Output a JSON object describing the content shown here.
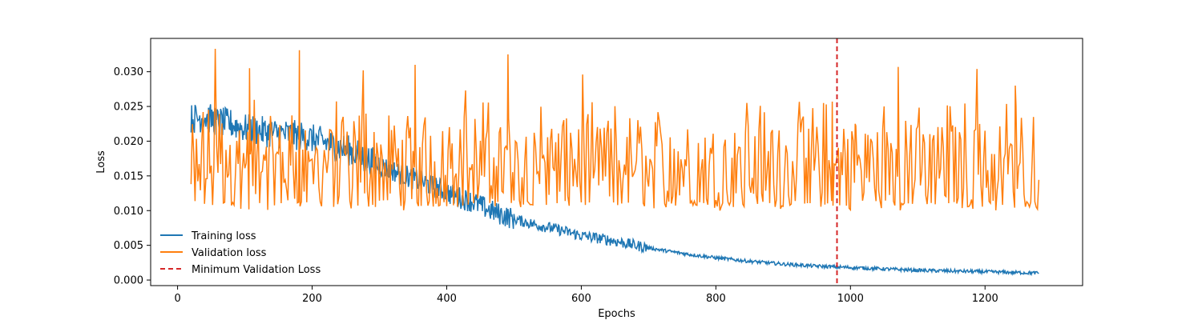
{
  "chart_data": {
    "type": "line",
    "title": "",
    "xlabel": "Epochs",
    "ylabel": "Loss",
    "xlim": [
      -40,
      1345
    ],
    "ylim": [
      -0.0008,
      0.0348
    ],
    "xticks": [
      0,
      200,
      400,
      600,
      800,
      1000,
      1200
    ],
    "yticks": [
      0.0,
      0.005,
      0.01,
      0.015,
      0.02,
      0.025,
      0.03
    ],
    "ytick_labels": [
      "0.000",
      "0.005",
      "0.010",
      "0.015",
      "0.020",
      "0.025",
      "0.030"
    ],
    "grid": false,
    "legend_position": "lower-left",
    "series": [
      {
        "name": "Training loss",
        "color": "#1f77b4",
        "style": "solid",
        "points": [
          [
            20,
            0.0232
          ],
          [
            40,
            0.0235
          ],
          [
            60,
            0.0228
          ],
          [
            80,
            0.0225
          ],
          [
            100,
            0.0218
          ],
          [
            140,
            0.0212
          ],
          [
            180,
            0.0208
          ],
          [
            220,
            0.0198
          ],
          [
            260,
            0.0185
          ],
          [
            300,
            0.0165
          ],
          [
            340,
            0.015
          ],
          [
            380,
            0.0135
          ],
          [
            410,
            0.0122
          ],
          [
            440,
            0.0112
          ],
          [
            470,
            0.0098
          ],
          [
            500,
            0.0088
          ],
          [
            530,
            0.008
          ],
          [
            560,
            0.0074
          ],
          [
            600,
            0.0064
          ],
          [
            640,
            0.0058
          ],
          [
            680,
            0.005
          ],
          [
            720,
            0.0043
          ],
          [
            760,
            0.0037
          ],
          [
            800,
            0.0032
          ],
          [
            850,
            0.0027
          ],
          [
            900,
            0.0023
          ],
          [
            950,
            0.002
          ],
          [
            1000,
            0.0018
          ],
          [
            1050,
            0.0016
          ],
          [
            1100,
            0.0014
          ],
          [
            1150,
            0.0013
          ],
          [
            1200,
            0.0012
          ],
          [
            1240,
            0.0011
          ],
          [
            1280,
            0.001
          ]
        ]
      },
      {
        "name": "Validation loss",
        "color": "#ff7f0e",
        "style": "solid",
        "x_start": 20,
        "x_end": 1280,
        "baseline": 0.0105,
        "min_value": 0.0085,
        "typical_peak": 0.025,
        "max_value": 0.0333,
        "peaks": [
          [
            56,
            0.0333
          ],
          [
            181,
            0.0331
          ],
          [
            491,
            0.0325
          ],
          [
            353,
            0.031
          ],
          [
            1071,
            0.0307
          ],
          [
            107,
            0.0305
          ],
          [
            1188,
            0.0304
          ],
          [
            276,
            0.0302
          ],
          [
            602,
            0.0296
          ],
          [
            428,
            0.0273
          ],
          [
            973,
            0.0257
          ],
          [
            1245,
            0.028
          ],
          [
            1007,
            0.0225
          ],
          [
            846,
            0.0255
          ]
        ]
      }
    ],
    "markers": [
      {
        "type": "vline",
        "x": 980,
        "name": "Minimum Validation Loss",
        "color": "#d62728",
        "style": "dashed"
      }
    ]
  }
}
